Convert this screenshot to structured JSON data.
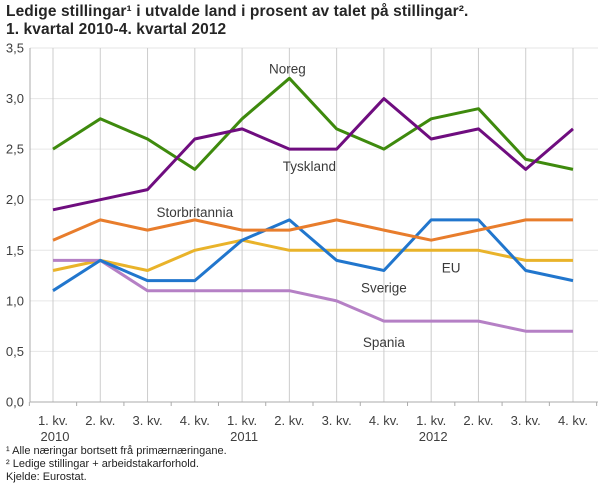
{
  "title": {
    "line1": "Ledige stillingar¹ i utvalde land i prosent av talet på stillingar².",
    "line2": "1. kvartal 2010-4. kvartal 2012"
  },
  "chart_data": {
    "type": "line",
    "title": "Ledige stillingar i utvalde land i prosent av talet på stillingar. 1. kvartal 2010-4. kvartal 2012",
    "x_categories": [
      "1. kv. 2010",
      "2. kv. 2010",
      "3. kv. 2010",
      "4. kv. 2010",
      "1. kv. 2011",
      "2. kv. 2011",
      "3. kv. 2011",
      "4. kv. 2011",
      "1. kv. 2012",
      "2. kv. 2012",
      "3. kv. 2012",
      "4. kv. 2012"
    ],
    "x_ticks": [
      {
        "q": "1. kv.",
        "year": "2010"
      },
      {
        "q": "2. kv."
      },
      {
        "q": "3. kv."
      },
      {
        "q": "4. kv."
      },
      {
        "q": "1. kv.",
        "year": "2011"
      },
      {
        "q": "2. kv."
      },
      {
        "q": "3. kv."
      },
      {
        "q": "4. kv."
      },
      {
        "q": "1. kv.",
        "year": "2012"
      },
      {
        "q": "2. kv."
      },
      {
        "q": "3. kv."
      },
      {
        "q": "4. kv."
      }
    ],
    "ylim": [
      0,
      3.5
    ],
    "y_ticks": {
      "values": [
        3.5,
        3.0,
        2.5,
        2.0,
        1.5,
        1.0,
        0.5,
        0.0
      ],
      "labels": [
        "3,5",
        "3,0",
        "2,5",
        "2,0",
        "1,5",
        "1,0",
        "0,5",
        "0,0"
      ]
    },
    "grid": true,
    "legend_position": "inline-labels",
    "series": [
      {
        "name": "Noreg",
        "color": "#3e8a0d",
        "values": [
          2.5,
          2.8,
          2.6,
          2.3,
          2.8,
          3.2,
          2.7,
          2.5,
          2.8,
          2.9,
          2.4,
          2.3
        ]
      },
      {
        "name": "Tyskland",
        "color": "#6f0d7f",
        "values": [
          1.9,
          2.0,
          2.1,
          2.6,
          2.7,
          2.5,
          2.5,
          3.0,
          2.6,
          2.7,
          2.3,
          2.7
        ]
      },
      {
        "name": "Storbritannia",
        "color": "#e87d2c",
        "values": [
          1.6,
          1.8,
          1.7,
          1.8,
          1.7,
          1.7,
          1.8,
          1.7,
          1.6,
          1.7,
          1.8,
          1.8
        ]
      },
      {
        "name": "EU",
        "color": "#e9b32a",
        "values": [
          1.3,
          1.4,
          1.3,
          1.5,
          1.6,
          1.5,
          1.5,
          1.5,
          1.5,
          1.5,
          1.4,
          1.4
        ]
      },
      {
        "name": "Sverige",
        "color": "#2176cd",
        "values": [
          1.1,
          1.4,
          1.2,
          1.2,
          1.6,
          1.8,
          1.4,
          1.3,
          1.8,
          1.8,
          1.3,
          1.2
        ]
      },
      {
        "name": "Spania",
        "color": "#b580c5",
        "values": [
          1.4,
          1.4,
          1.1,
          1.1,
          1.1,
          1.1,
          1.0,
          0.8,
          0.8,
          0.8,
          0.7,
          0.7
        ]
      }
    ],
    "colors": {
      "h_gridline": "#e6e6e6",
      "v_gridline": "#cccccc",
      "axis": "#ababab"
    }
  },
  "footnotes": [
    "¹ Alle næringar bortsett frå primærnæringane.",
    "² Ledige stillingar + arbeidstakarforhold.",
    "Kjelde: Eurostat."
  ]
}
